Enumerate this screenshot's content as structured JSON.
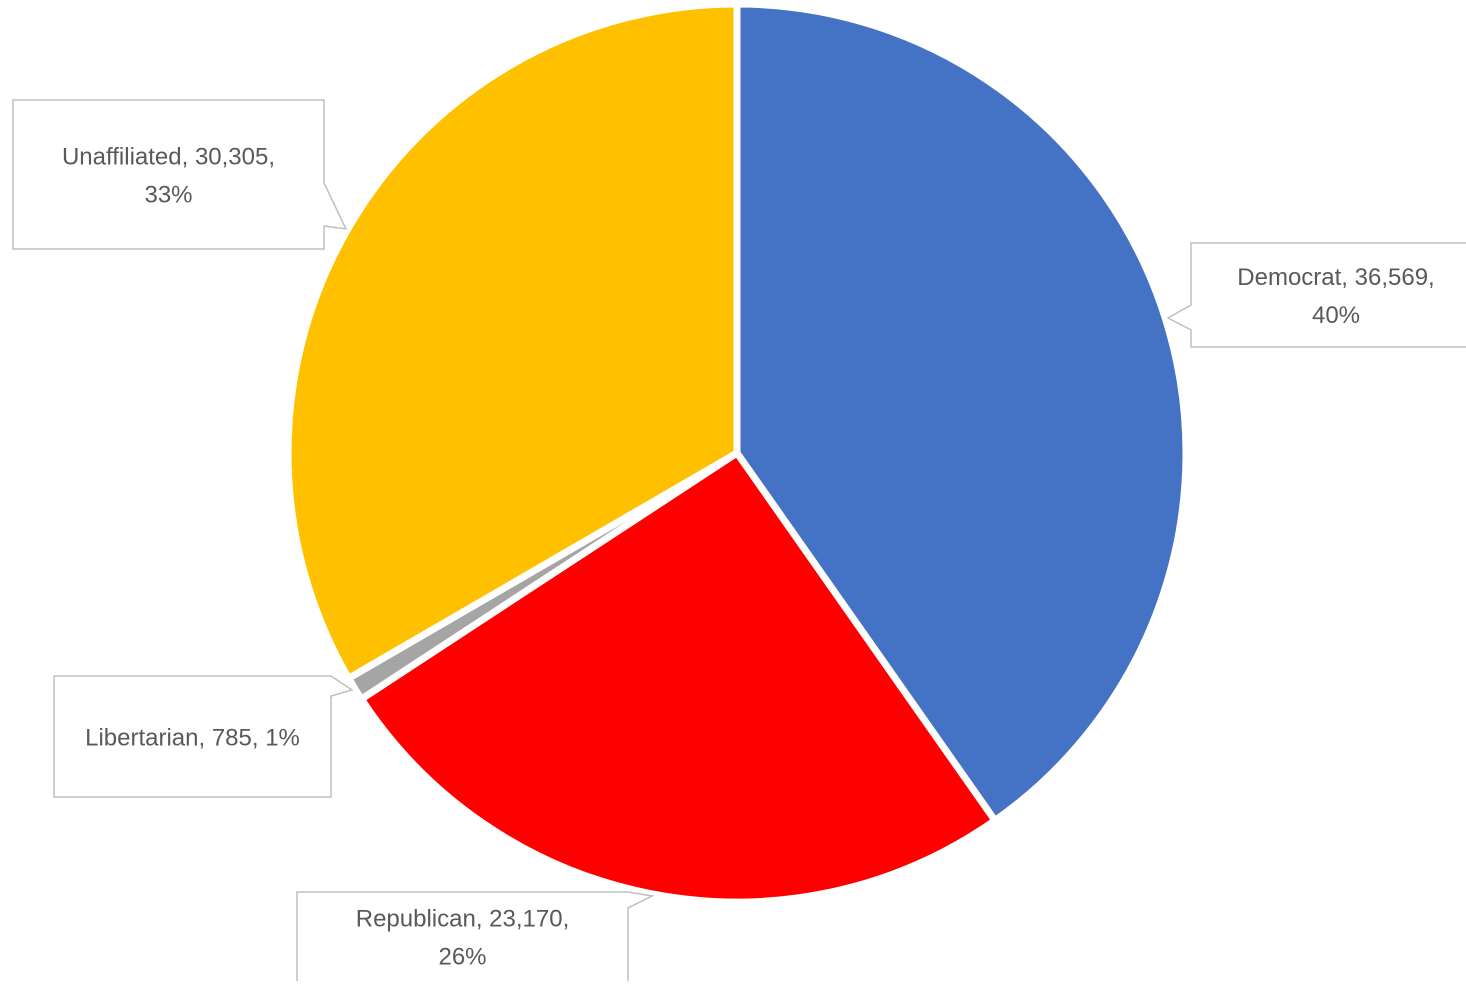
{
  "chart_data": {
    "type": "pie",
    "title": "",
    "start_angle_deg": 0,
    "direction": "clockwise",
    "slices": [
      {
        "label": "Democrat",
        "value": 36569,
        "value_text": "36,569",
        "percent_text": "40%",
        "color": "#4472C4"
      },
      {
        "label": "Republican",
        "value": 23170,
        "value_text": "23,170",
        "percent_text": "26%",
        "color": "#FF0000"
      },
      {
        "label": "Libertarian",
        "value": 785,
        "value_text": "785",
        "percent_text": "1%",
        "color": "#A5A5A5"
      },
      {
        "label": "Unaffiliated",
        "value": 30305,
        "value_text": "30,305",
        "percent_text": "33%",
        "color": "#FFC000"
      }
    ],
    "data_labels": {
      "show_category": true,
      "show_value": true,
      "show_percent": true,
      "separator": ", ",
      "style": "callout"
    },
    "legend": "none"
  }
}
